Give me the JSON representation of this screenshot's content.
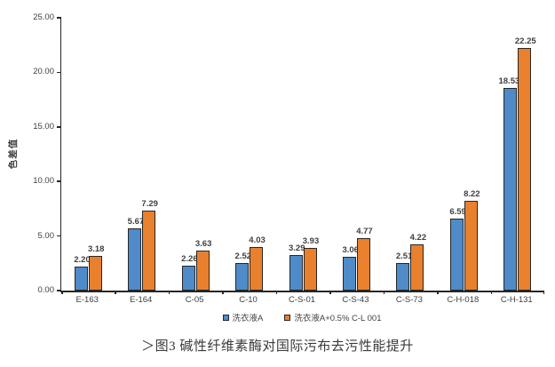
{
  "chart_data": {
    "type": "bar",
    "title": "",
    "categories": [
      "E-163",
      "E-164",
      "C-05",
      "C-10",
      "C-S-01",
      "C-S-43",
      "C-S-73",
      "C-H-018",
      "C-H-131"
    ],
    "series": [
      {
        "name": "洗衣液A",
        "color": "#4E8BC8",
        "values": [
          2.2,
          5.67,
          2.26,
          2.52,
          3.29,
          3.06,
          2.51,
          6.59,
          18.53
        ]
      },
      {
        "name": "洗衣液A+0.5% C-L 001",
        "color": "#E8802E",
        "values": [
          3.18,
          7.29,
          3.63,
          4.03,
          3.93,
          4.77,
          4.22,
          8.22,
          22.25
        ]
      }
    ],
    "xlabel": "",
    "ylabel": "色差值",
    "ylim": [
      0,
      25
    ],
    "ytick_labels": [
      "0.00",
      "5.00",
      "10.00",
      "15.00",
      "20.00",
      "25.00"
    ],
    "grid": false,
    "legend_position": "bottom",
    "data_labels": true,
    "bar_outline_color": "#262626",
    "axis_color": "#262626",
    "text_color": "#404040"
  },
  "caption": "＞图3 碱性纤维素酶对国际污布去污性能提升"
}
